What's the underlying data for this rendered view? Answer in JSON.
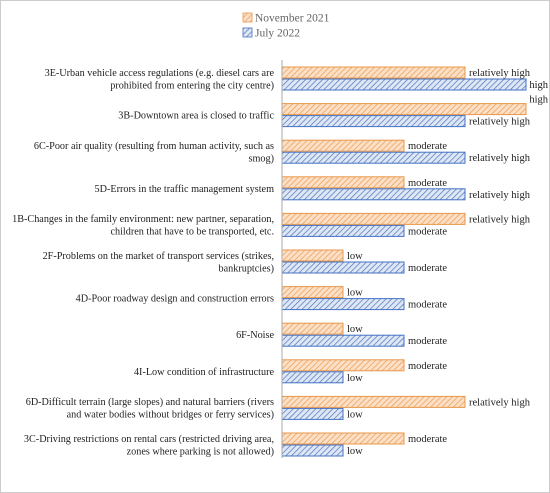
{
  "chart_data": {
    "type": "bar",
    "orientation": "horizontal",
    "value_scale": [
      "low",
      "moderate",
      "relatively high",
      "high"
    ],
    "legend": {
      "position": "top",
      "entries": [
        "November 2021",
        "July 2022"
      ]
    },
    "colors": {
      "nov_fill": "#fbe0c7",
      "nov_hatch": "#ed9a4e",
      "nov_stroke": "#e8974a",
      "jul_fill": "#dfe7f5",
      "jul_hatch": "#4a74bd",
      "jul_stroke": "#4472c4",
      "axis": "#aaaaaa",
      "frame": "#cccccc"
    },
    "categories": [
      [
        "3E-Urban vehicle access regulations (e.g. diesel cars are",
        "prohibited from entering the city centre)"
      ],
      [
        "3B-Downtown area is closed to traffic"
      ],
      [
        "6C-Poor air quality (resulting from human activity, such as",
        "smog)"
      ],
      [
        "5D-Errors in the traffic management system"
      ],
      [
        "1B-Changes in the family environment: new partner, separation,",
        "children that have to be transported, etc."
      ],
      [
        "2F-Problems on the market of transport services (strikes,",
        "bankruptcies)"
      ],
      [
        "4D-Poor roadway design and construction errors"
      ],
      [
        "6F-Noise"
      ],
      [
        "4I-Low condition of infrastructure"
      ],
      [
        "6D-Difficult terrain (large slopes) and natural barriers (rivers",
        "and water bodies without bridges or ferry services)"
      ],
      [
        "3C-Driving restrictions on rental cars (restricted driving area,",
        "zones where parking is not allowed)"
      ]
    ],
    "series": [
      {
        "name": "November 2021",
        "values": [
          3,
          4,
          2,
          2,
          3,
          1,
          1,
          1,
          2,
          3,
          2
        ],
        "labels": [
          "relatively high",
          "high",
          "moderate",
          "moderate",
          "relatively high",
          "low",
          "low",
          "low",
          "moderate",
          "relatively high",
          "moderate"
        ]
      },
      {
        "name": "July 2022",
        "values": [
          4,
          3,
          3,
          3,
          2,
          2,
          2,
          2,
          1,
          1,
          1
        ],
        "labels": [
          "high",
          "relatively high",
          "relatively high",
          "relatively high",
          "moderate",
          "moderate",
          "moderate",
          "moderate",
          "low",
          "low",
          "low"
        ]
      }
    ]
  }
}
